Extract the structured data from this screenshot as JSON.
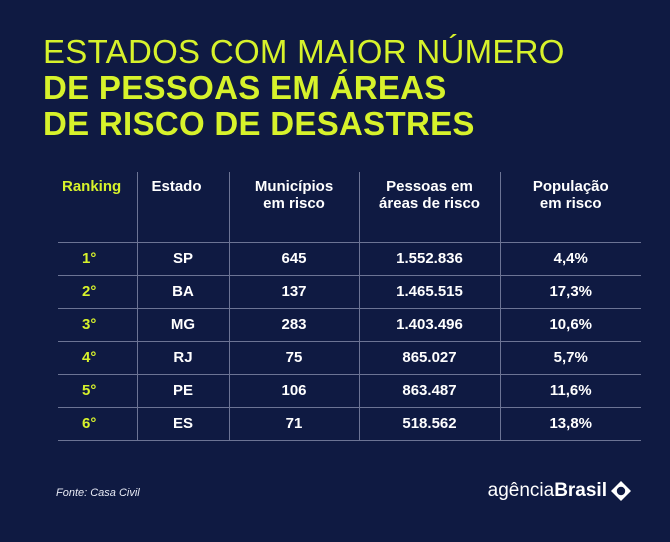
{
  "title": {
    "line1": "ESTADOS COM MAIOR NÚMERO",
    "line2": "DE PESSOAS EM ÁREAS",
    "line3": "DE RISCO DE DESASTRES"
  },
  "chart_data": {
    "type": "table",
    "columns": [
      "Ranking",
      "Estado",
      "Municípios em risco",
      "Pessoas em áreas de risco",
      "População em risco"
    ],
    "header_lines": [
      [
        "Ranking"
      ],
      [
        "Estado"
      ],
      [
        "Municípios",
        "em risco"
      ],
      [
        "Pessoas em",
        "áreas de risco"
      ],
      [
        "População",
        "em risco"
      ]
    ],
    "rows": [
      {
        "ranking": "1°",
        "estado": "SP",
        "municipios": "645",
        "pessoas": "1.552.836",
        "populacao": "4,4%"
      },
      {
        "ranking": "2°",
        "estado": "BA",
        "municipios": "137",
        "pessoas": "1.465.515",
        "populacao": "17,3%"
      },
      {
        "ranking": "3°",
        "estado": "MG",
        "municipios": "283",
        "pessoas": "1.403.496",
        "populacao": "10,6%"
      },
      {
        "ranking": "4°",
        "estado": "RJ",
        "municipios": "75",
        "pessoas": "865.027",
        "populacao": "5,7%"
      },
      {
        "ranking": "5°",
        "estado": "PE",
        "municipios": "106",
        "pessoas": "863.487",
        "populacao": "11,6%"
      },
      {
        "ranking": "6°",
        "estado": "ES",
        "municipios": "71",
        "pessoas": "518.562",
        "populacao": "13,8%"
      }
    ]
  },
  "footer": {
    "source": "Fonte: Casa Civil",
    "logo_light": "agência",
    "logo_bold": "Brasil",
    "logo_icon": "agencia-brasil-icon"
  },
  "colors": {
    "background": "#0f1a42",
    "accent": "#d7f22b",
    "text": "#ffffff",
    "grid": "#6c7494"
  }
}
